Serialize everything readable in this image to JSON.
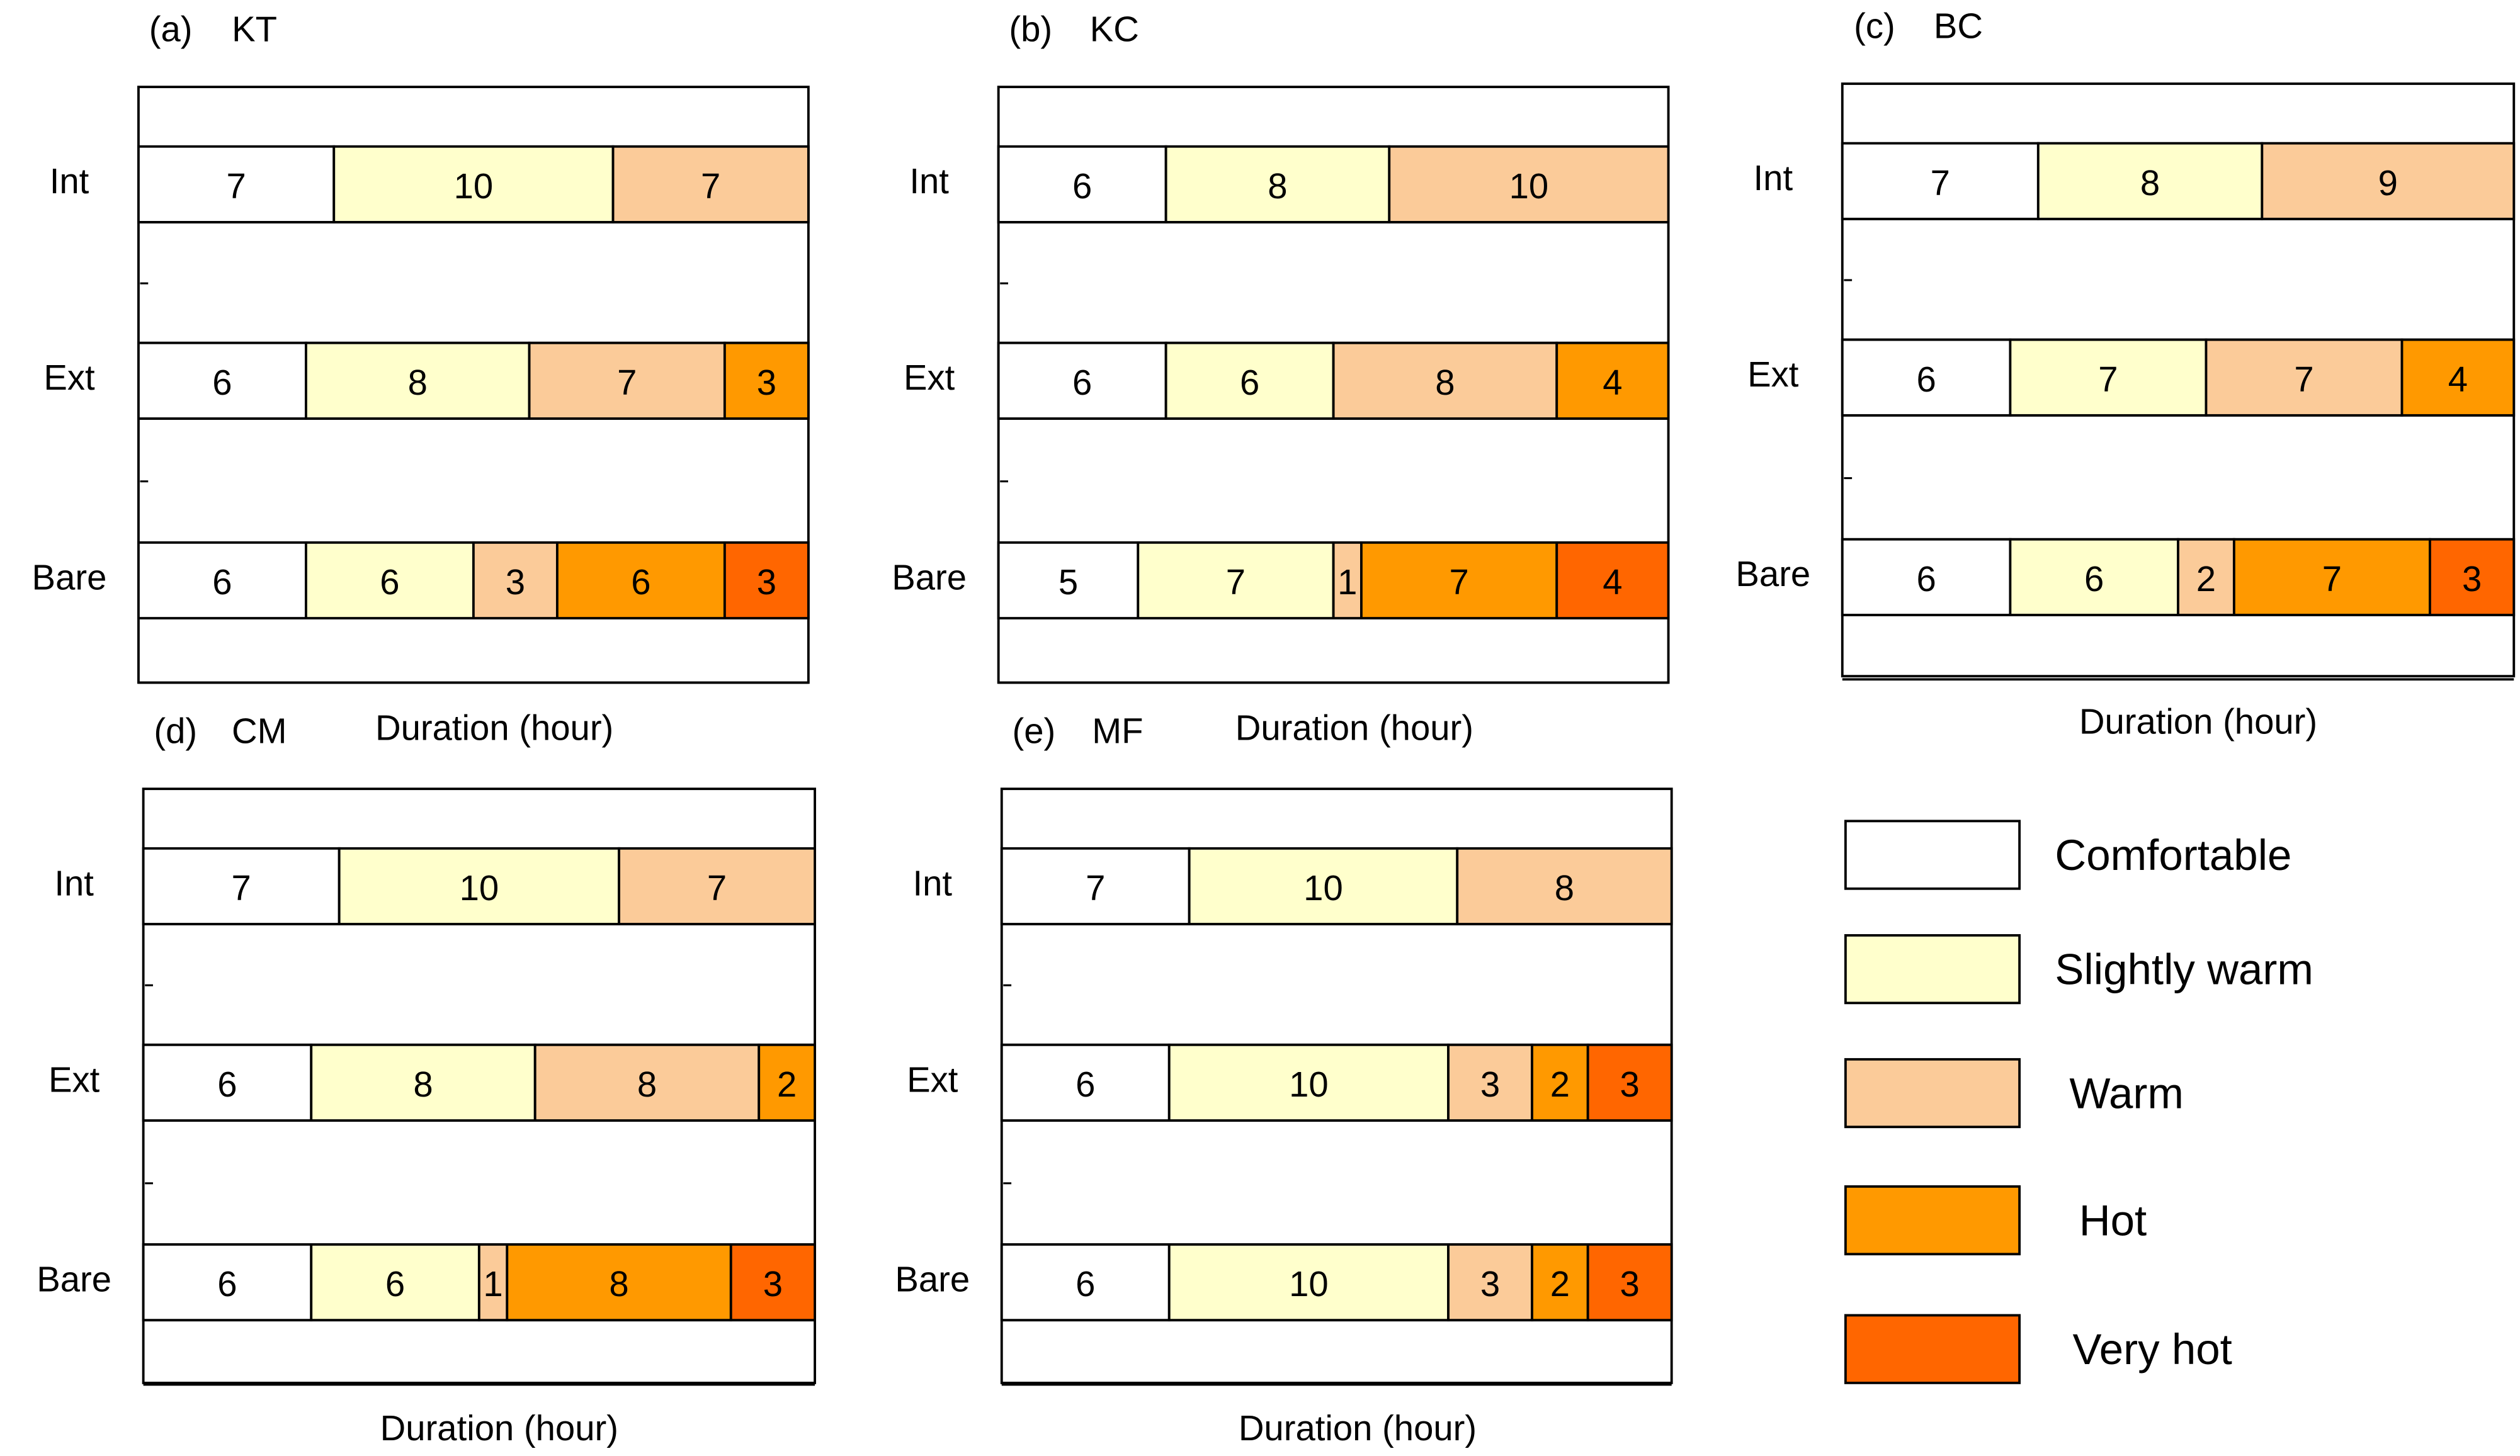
{
  "figure": {
    "xlabel": "Duration (hour)",
    "row_labels": [
      "Int",
      "Ext",
      "Bare"
    ],
    "colors": {
      "Comfortable": "#FFFFFF",
      "Slightly warm": "#FFFFCC",
      "Warm": "#FBCB99",
      "Hot": "#FF9900",
      "Very hot": "#FF6600"
    },
    "legend": [
      "Comfortable",
      "Slightly warm",
      "Warm",
      "Hot",
      "Very hot"
    ]
  },
  "chart_data": [
    {
      "type": "bar",
      "stacked": true,
      "orientation": "horizontal",
      "panel": "(a)",
      "title": "KT",
      "xlabel": "Duration (hour)",
      "categories": [
        "Int",
        "Ext",
        "Bare"
      ],
      "series": [
        {
          "name": "Comfortable",
          "values": [
            7,
            6,
            6
          ]
        },
        {
          "name": "Slightly warm",
          "values": [
            10,
            8,
            6
          ]
        },
        {
          "name": "Warm",
          "values": [
            7,
            7,
            3
          ]
        },
        {
          "name": "Hot",
          "values": [
            0,
            3,
            6
          ]
        },
        {
          "name": "Very hot",
          "values": [
            0,
            0,
            3
          ]
        }
      ]
    },
    {
      "type": "bar",
      "stacked": true,
      "orientation": "horizontal",
      "panel": "(b)",
      "title": "KC",
      "xlabel": "Duration (hour)",
      "categories": [
        "Int",
        "Ext",
        "Bare"
      ],
      "series": [
        {
          "name": "Comfortable",
          "values": [
            6,
            6,
            5
          ]
        },
        {
          "name": "Slightly warm",
          "values": [
            8,
            6,
            7
          ]
        },
        {
          "name": "Warm",
          "values": [
            10,
            8,
            1
          ]
        },
        {
          "name": "Hot",
          "values": [
            0,
            4,
            7
          ]
        },
        {
          "name": "Very hot",
          "values": [
            0,
            0,
            4
          ]
        }
      ]
    },
    {
      "type": "bar",
      "stacked": true,
      "orientation": "horizontal",
      "panel": "(c)",
      "title": "BC",
      "xlabel": "Duration (hour)",
      "categories": [
        "Int",
        "Ext",
        "Bare"
      ],
      "series": [
        {
          "name": "Comfortable",
          "values": [
            7,
            6,
            6
          ]
        },
        {
          "name": "Slightly warm",
          "values": [
            8,
            7,
            6
          ]
        },
        {
          "name": "Warm",
          "values": [
            9,
            7,
            2
          ]
        },
        {
          "name": "Hot",
          "values": [
            0,
            4,
            7
          ]
        },
        {
          "name": "Very hot",
          "values": [
            0,
            0,
            3
          ]
        }
      ]
    },
    {
      "type": "bar",
      "stacked": true,
      "orientation": "horizontal",
      "panel": "(d)",
      "title": "CM",
      "xlabel": "Duration (hour)",
      "categories": [
        "Int",
        "Ext",
        "Bare"
      ],
      "series": [
        {
          "name": "Comfortable",
          "values": [
            7,
            6,
            6
          ]
        },
        {
          "name": "Slightly warm",
          "values": [
            10,
            8,
            6
          ]
        },
        {
          "name": "Warm",
          "values": [
            7,
            8,
            1
          ]
        },
        {
          "name": "Hot",
          "values": [
            0,
            2,
            8
          ]
        },
        {
          "name": "Very hot",
          "values": [
            0,
            0,
            3
          ]
        }
      ]
    },
    {
      "type": "bar",
      "stacked": true,
      "orientation": "horizontal",
      "panel": "(e)",
      "title": "MF",
      "xlabel": "Duration (hour)",
      "categories": [
        "Int",
        "Ext",
        "Bare"
      ],
      "series": [
        {
          "name": "Comfortable",
          "values": [
            7,
            6,
            6
          ]
        },
        {
          "name": "Slightly warm",
          "values": [
            10,
            10,
            10
          ]
        },
        {
          "name": "Warm",
          "values": [
            8,
            3,
            3
          ]
        },
        {
          "name": "Hot",
          "values": [
            0,
            2,
            2
          ]
        },
        {
          "name": "Very hot",
          "values": [
            0,
            3,
            3
          ]
        }
      ]
    }
  ]
}
